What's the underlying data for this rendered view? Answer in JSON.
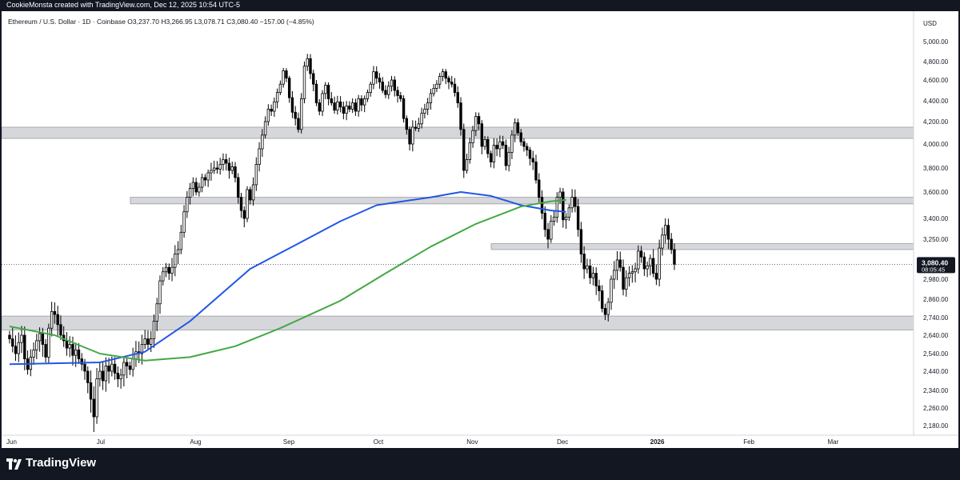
{
  "watermark": "CookieMonsta created with TradingView.com, Dec 12, 2025 10:54 UTC-5",
  "footer": {
    "brand": "TradingView"
  },
  "chart_data": {
    "type": "candlestick",
    "symbol_line": "Ethereum / U.S. Dollar · 1D · Coinbase  O3,237.70  H3,266.95  L3,078.71  C3,080.40  −157.00 (−4.85%)",
    "currency": "USD",
    "y_ticks": [
      5000,
      4800,
      4600,
      4400,
      4200,
      4000,
      3800,
      3600,
      3400,
      3250,
      2980,
      2860,
      2740,
      2640,
      2540,
      2440,
      2340,
      2260,
      2180
    ],
    "y_tick_labels": [
      "5,000.00",
      "4,800.00",
      "4,600.00",
      "4,400.00",
      "4,200.00",
      "4,000.00",
      "3,800.00",
      "3,600.00",
      "3,400.00",
      "3,250.00",
      "2,980.00",
      "2,860.00",
      "2,740.00",
      "2,640.00",
      "2,540.00",
      "2,440.00",
      "2,340.00",
      "2,260.00",
      "2,180.00"
    ],
    "x_labels": [
      {
        "label": "Jun",
        "day": 0
      },
      {
        "label": "Jul",
        "day": 30
      },
      {
        "label": "Aug",
        "day": 61
      },
      {
        "label": "Sep",
        "day": 92
      },
      {
        "label": "Oct",
        "day": 122
      },
      {
        "label": "Nov",
        "day": 153
      },
      {
        "label": "Dec",
        "day": 183
      },
      {
        "label": "2026",
        "day": 214
      },
      {
        "label": "Feb",
        "day": 245
      },
      {
        "label": "Mar",
        "day": 273
      }
    ],
    "x_range_days": [
      0,
      296
    ],
    "last_price": {
      "value": 3080.4,
      "label": "3,080.40",
      "countdown": "08:05:45"
    },
    "zones": [
      {
        "low": 4050,
        "high": 4150
      },
      {
        "low": 3510,
        "high": 3560
      },
      {
        "low": 3180,
        "high": 3220
      },
      {
        "low": 2670,
        "high": 2750
      }
    ],
    "closes": [
      2620,
      2580,
      2540,
      2600,
      2640,
      2510,
      2450,
      2520,
      2560,
      2610,
      2650,
      2590,
      2520,
      2680,
      2780,
      2760,
      2700,
      2640,
      2610,
      2570,
      2590,
      2530,
      2560,
      2510,
      2480,
      2440,
      2380,
      2300,
      2220,
      2400,
      2440,
      2390,
      2470,
      2440,
      2480,
      2430,
      2400,
      2420,
      2490,
      2470,
      2450,
      2510,
      2550,
      2540,
      2590,
      2620,
      2590,
      2620,
      2720,
      2830,
      2970,
      3030,
      3060,
      3020,
      3060,
      3150,
      3180,
      3300,
      3450,
      3560,
      3630,
      3680,
      3600,
      3640,
      3720,
      3700,
      3760,
      3780,
      3800,
      3790,
      3830,
      3870,
      3840,
      3780,
      3810,
      3720,
      3560,
      3460,
      3400,
      3620,
      3540,
      3660,
      3830,
      3960,
      4080,
      4200,
      4320,
      4300,
      4390,
      4480,
      4560,
      4700,
      4620,
      4430,
      4290,
      4230,
      4130,
      4420,
      4750,
      4830,
      4670,
      4560,
      4380,
      4300,
      4470,
      4550,
      4420,
      4380,
      4310,
      4390,
      4340,
      4280,
      4350,
      4320,
      4380,
      4300,
      4420,
      4360,
      4420,
      4480,
      4560,
      4690,
      4620,
      4580,
      4500,
      4460,
      4540,
      4600,
      4500,
      4450,
      4420,
      4230,
      4130,
      4000,
      4150,
      4140,
      4180,
      4280,
      4320,
      4380,
      4470,
      4520,
      4560,
      4640,
      4690,
      4620,
      4580,
      4560,
      4480,
      4380,
      4130,
      3780,
      3870,
      4010,
      4120,
      4250,
      4180,
      3980,
      4040,
      3920,
      3850,
      3990,
      3960,
      4020,
      3990,
      3820,
      3930,
      4080,
      4190,
      4100,
      4020,
      3980,
      3950,
      3880,
      3850,
      3700,
      3560,
      3440,
      3320,
      3250,
      3380,
      3410,
      3560,
      3600,
      3390,
      3410,
      3480,
      3560,
      3490,
      3320,
      3150,
      3050,
      3070,
      2990,
      3020,
      2940,
      2910,
      2800,
      2760,
      2840,
      2980,
      3040,
      3110,
      3060,
      2920,
      2990,
      3020,
      3030,
      3050,
      3170,
      3130,
      3050,
      3070,
      3120,
      3020,
      2980,
      3190,
      3280,
      3350,
      3250,
      3180,
      3080
    ],
    "series": [
      {
        "name": "",
        "color": "#2157e6",
        "points": [
          [
            0,
            2480
          ],
          [
            30,
            2490
          ],
          [
            45,
            2550
          ],
          [
            60,
            2720
          ],
          [
            80,
            3050
          ],
          [
            95,
            3210
          ],
          [
            110,
            3380
          ],
          [
            122,
            3500
          ],
          [
            140,
            3560
          ],
          [
            150,
            3600
          ],
          [
            160,
            3570
          ],
          [
            170,
            3500
          ],
          [
            180,
            3460
          ],
          [
            185,
            3450
          ]
        ]
      },
      {
        "name": "",
        "color": "#43a845",
        "points": [
          [
            0,
            2690
          ],
          [
            15,
            2640
          ],
          [
            30,
            2540
          ],
          [
            45,
            2500
          ],
          [
            60,
            2520
          ],
          [
            75,
            2580
          ],
          [
            90,
            2680
          ],
          [
            110,
            2850
          ],
          [
            125,
            3020
          ],
          [
            140,
            3200
          ],
          [
            155,
            3360
          ],
          [
            170,
            3490
          ],
          [
            180,
            3530
          ],
          [
            185,
            3540
          ]
        ]
      }
    ]
  }
}
